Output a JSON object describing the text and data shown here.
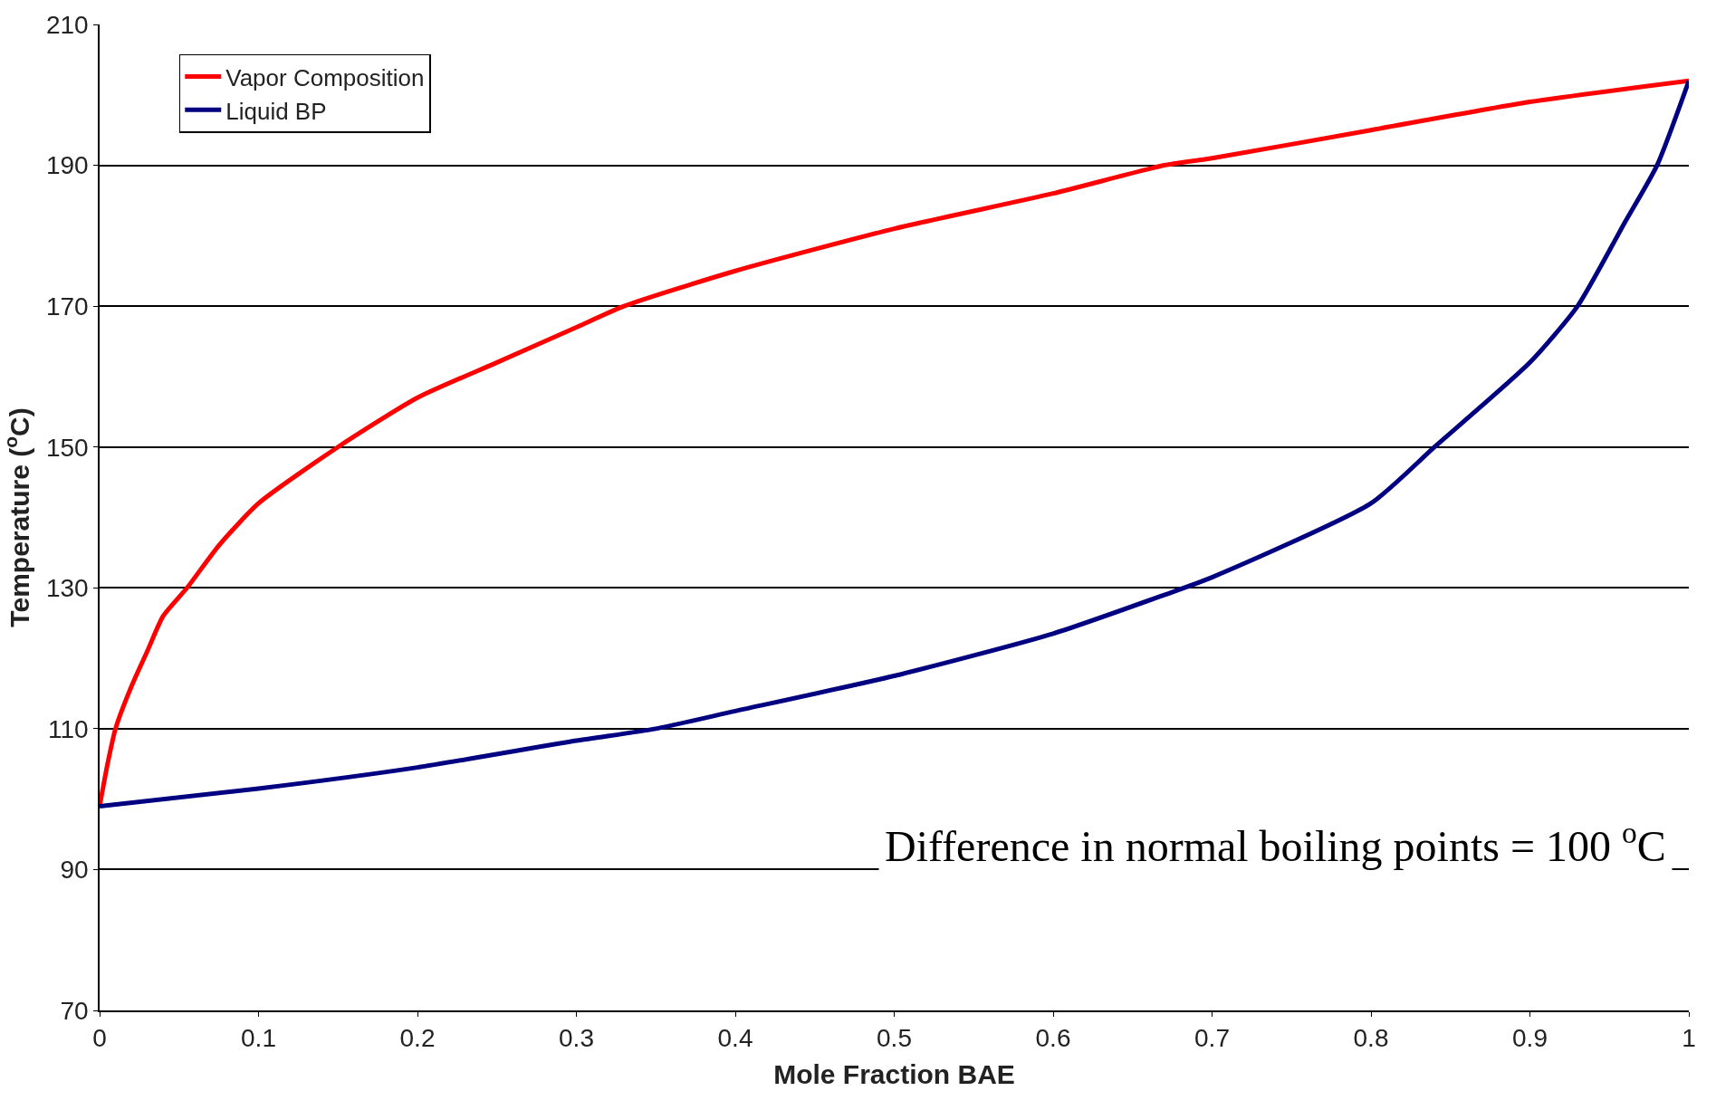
{
  "chart_data": {
    "type": "line",
    "xlabel": "Mole Fraction BAE",
    "ylabel": "Temperature ($^{o}$C)",
    "series": [
      {
        "name": "Vapor Composition",
        "color": "#ff0000",
        "x": [
          0,
          0.005,
          0.01,
          0.02,
          0.03,
          0.04,
          0.055,
          0.075,
          0.1,
          0.15,
          0.2,
          0.25,
          0.3,
          0.33,
          0.4,
          0.5,
          0.6,
          0.67,
          0.7,
          0.8,
          0.9,
          1
        ],
        "values": [
          99,
          105,
          110,
          116,
          121,
          126,
          130,
          136,
          142,
          150,
          157,
          162,
          167,
          170,
          175,
          181,
          186,
          190,
          191,
          195,
          199,
          202
        ]
      },
      {
        "name": "Liquid BP",
        "color": "#000080",
        "x": [
          0,
          0.1,
          0.2,
          0.3,
          0.35,
          0.4,
          0.5,
          0.6,
          0.67,
          0.7,
          0.8,
          0.84,
          0.9,
          0.93,
          0.96,
          0.98,
          1
        ],
        "values": [
          99,
          101.5,
          104.5,
          108.3,
          110,
          112.5,
          117.5,
          123.5,
          129,
          131.5,
          142,
          150,
          162,
          170,
          182,
          190,
          202
        ]
      }
    ],
    "xlim": [
      0,
      1
    ],
    "xticks": [
      0,
      0.1,
      0.2,
      0.3,
      0.4,
      0.5,
      0.6,
      0.7,
      0.8,
      0.9,
      1
    ],
    "ylim": [
      70,
      210
    ],
    "yticks": [
      70,
      90,
      110,
      130,
      150,
      170,
      190,
      210
    ],
    "grid": "y",
    "legend": "top left",
    "marker": "none",
    "line_style": "solid",
    "annotations": [
      "Difference in normal boiling points = 100 $^{o}$C"
    ]
  }
}
